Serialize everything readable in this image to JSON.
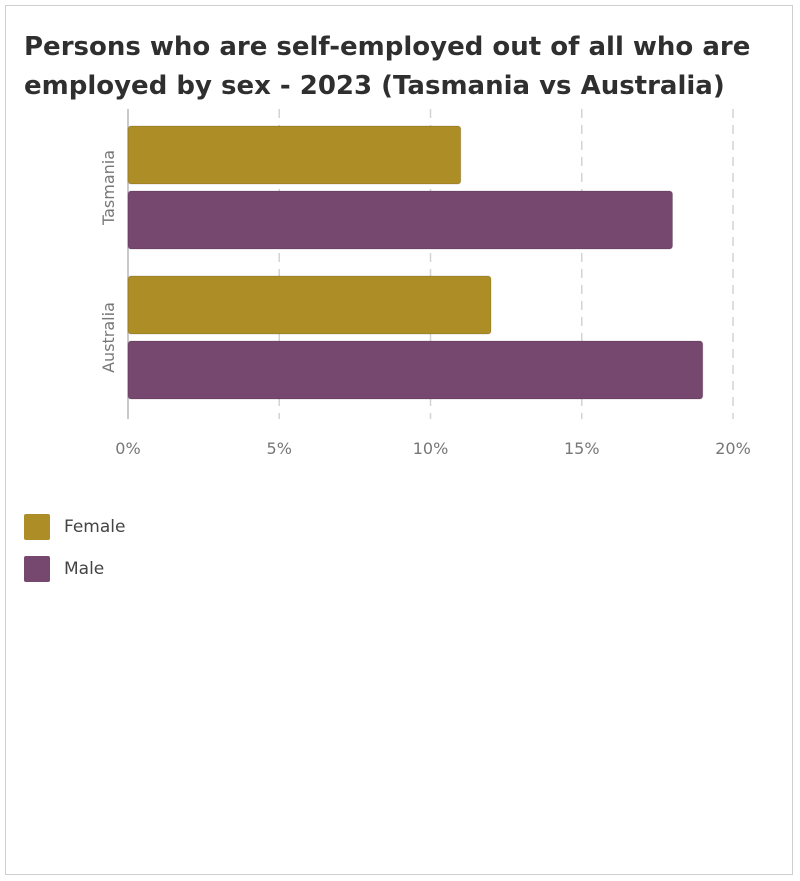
{
  "chart_data": {
    "type": "bar",
    "orientation": "horizontal",
    "title": "Persons who are self-employed out of all who are employed by sex - 2023 (Tasmania vs Australia)",
    "categories": [
      "Tasmania",
      "Australia"
    ],
    "series": [
      {
        "name": "Female",
        "values": [
          11,
          12
        ],
        "color": "#ad8e26"
      },
      {
        "name": "Male",
        "values": [
          18,
          19
        ],
        "color": "#77486f"
      }
    ],
    "xlim": [
      0,
      20
    ],
    "x_ticks": [
      0,
      5,
      10,
      15,
      20
    ],
    "x_tick_labels": [
      "0%",
      "5%",
      "10%",
      "15%",
      "20%"
    ],
    "grid": true,
    "legend_position": "bottom-left"
  }
}
